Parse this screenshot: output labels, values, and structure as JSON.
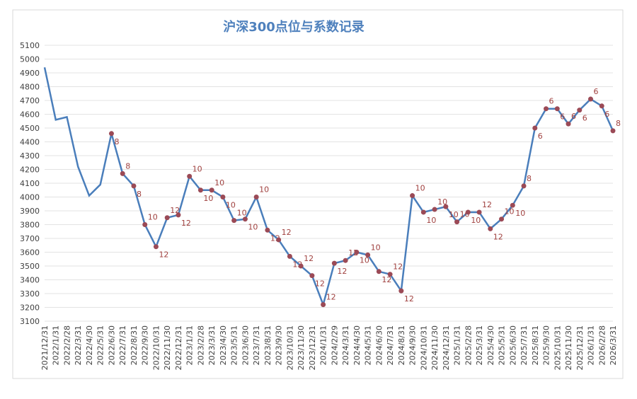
{
  "chart_data": {
    "type": "line",
    "title": "沪深300点位与系数记录",
    "categories": [
      "2021/12/31",
      "2022/1/31",
      "2022/2/28",
      "2022/3/31",
      "2022/4/30",
      "2022/5/31",
      "2022/6/30",
      "2022/7/31",
      "2022/8/31",
      "2022/9/30",
      "2022/10/31",
      "2022/11/30",
      "2022/12/31",
      "2023/1/31",
      "2023/2/28",
      "2023/3/31",
      "2023/4/30",
      "2023/5/31",
      "2023/6/30",
      "2023/7/31",
      "2023/8/31",
      "2023/9/30",
      "2023/10/31",
      "2023/11/30",
      "2023/12/31",
      "2024/1/31",
      "2024/2/29",
      "2024/3/31",
      "2024/4/30",
      "2024/5/31",
      "2024/6/30",
      "2024/7/31",
      "2024/8/31",
      "2024/9/30",
      "2024/10/31",
      "2024/11/30",
      "2024/12/31",
      "2025/1/31",
      "2025/2/28",
      "2025/3/31",
      "2025/4/30",
      "2025/5/31",
      "2025/6/30",
      "2025/7/31",
      "2025/8/31",
      "2025/9/30",
      "2025/10/31",
      "2025/11/30",
      "2025/12/31",
      "2026/1/31",
      "2026/2/28",
      "2026/3/31"
    ],
    "series": [
      {
        "color": "#4a7ebb",
        "marker_color": "#9b4a56",
        "values": [
          4940,
          4560,
          4580,
          4220,
          4010,
          4090,
          4460,
          4170,
          4080,
          3800,
          3640,
          3850,
          3870,
          4150,
          4050,
          4050,
          4000,
          3830,
          3840,
          4000,
          3760,
          3690,
          3570,
          3500,
          3430,
          3220,
          3520,
          3540,
          3600,
          3580,
          3460,
          3440,
          3320,
          4010,
          3890,
          3910,
          3930,
          3820,
          3890,
          3890,
          3770,
          3840,
          3940,
          4080,
          4500,
          4640,
          4640,
          4530,
          4630,
          4710,
          4660,
          4480
        ],
        "point_labels": [
          null,
          null,
          null,
          null,
          null,
          null,
          8,
          8,
          8,
          10,
          12,
          12,
          12,
          10,
          10,
          10,
          10,
          10,
          10,
          10,
          12,
          12,
          12,
          12,
          12,
          12,
          12,
          12,
          10,
          10,
          12,
          12,
          12,
          10,
          10,
          10,
          10,
          10,
          10,
          12,
          12,
          10,
          10,
          8,
          6,
          6,
          6,
          6,
          6,
          6,
          6,
          8
        ]
      }
    ],
    "ylim": [
      3100,
      5100
    ],
    "yticks": [
      3100,
      3200,
      3300,
      3400,
      3500,
      3600,
      3700,
      3800,
      3900,
      4000,
      4100,
      4200,
      4300,
      4400,
      4500,
      4600,
      4700,
      4800,
      4900,
      5000,
      5100
    ],
    "grid": true
  }
}
